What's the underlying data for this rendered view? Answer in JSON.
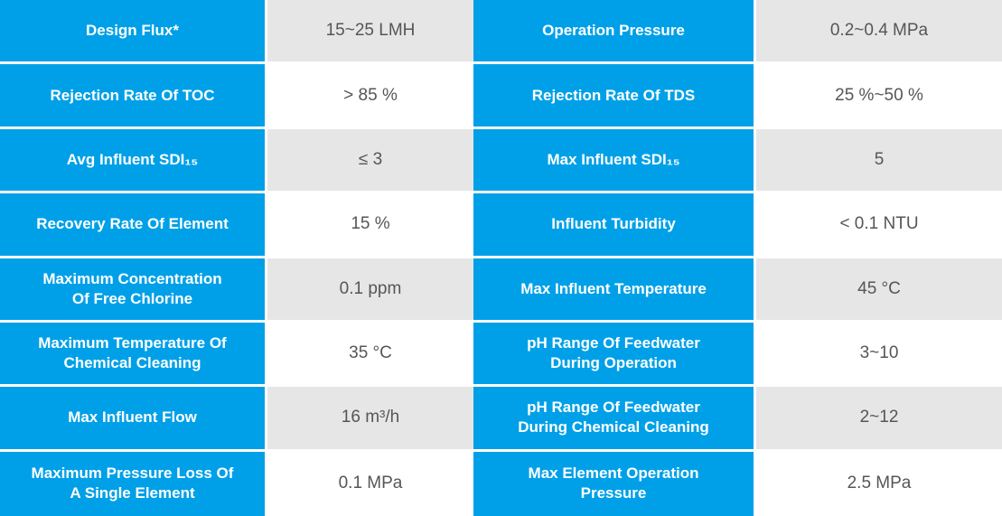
{
  "colors": {
    "param_cell_bg": "#00A0E8",
    "param_cell_text": "#FFFFFF",
    "value_cell_bg_odd": "#E6E6E6",
    "value_cell_bg_even": "#FFFFFF",
    "value_cell_text": "#55565A",
    "divider": "#FFFFFF"
  },
  "table": {
    "rows": [
      {
        "cells": [
          "Design Flux*",
          "15~25 LMH",
          "Operation Pressure",
          "0.2~0.4 MPa"
        ]
      },
      {
        "cells": [
          "Rejection Rate Of TOC",
          "> 85 %",
          "Rejection Rate Of TDS",
          "25 %~50 %"
        ]
      },
      {
        "cells": [
          "Avg Influent SDI₁₅",
          "≤ 3",
          "Max Influent SDI₁₅",
          "5"
        ]
      },
      {
        "cells": [
          "Recovery Rate Of Element",
          "15 %",
          "Influent Turbidity",
          "< 0.1 NTU"
        ]
      },
      {
        "cells": [
          "Maximum Concentration\nOf Free Chlorine",
          "0.1 ppm",
          "Max Influent Temperature",
          "45 °C"
        ]
      },
      {
        "cells": [
          "Maximum Temperature Of\nChemical Cleaning",
          "35 °C",
          "pH Range Of Feedwater\nDuring Operation",
          "3~10"
        ]
      },
      {
        "cells": [
          "Max Influent Flow",
          "16 m³/h",
          "pH Range Of Feedwater\nDuring Chemical Cleaning",
          "2~12"
        ]
      },
      {
        "cells": [
          "Maximum Pressure Loss Of\nA Single Element",
          "0.1 MPa",
          "Max Element Operation\nPressure",
          "2.5 MPa"
        ]
      }
    ]
  }
}
